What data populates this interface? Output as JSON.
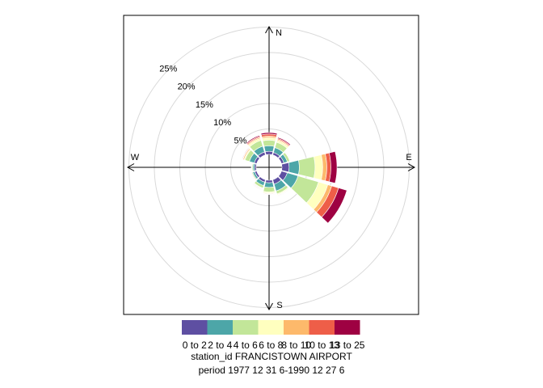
{
  "chart_data": {
    "type": "windrose",
    "title": "",
    "compass": [
      "N",
      "E",
      "S",
      "W"
    ],
    "radial_axis": {
      "max": 25,
      "ticks": [
        5,
        10,
        15,
        20,
        25
      ],
      "tick_labels": [
        "5%",
        "10%",
        "15%",
        "20%",
        "25%"
      ],
      "grid": true
    },
    "speed_bins": [
      "0 to 2",
      "2 to 4",
      "4 to 6",
      "6 to 8",
      "8 to 10",
      "10 to 13",
      "13 to 25"
    ],
    "colors": [
      "#5E4FA2",
      "#4DA6A8",
      "#C2E699",
      "#FFFFBF",
      "#FDB96B",
      "#EE5E48",
      "#9E0142"
    ],
    "directions_deg": [
      0,
      30,
      60,
      90,
      120,
      150,
      180,
      210,
      240,
      270,
      300,
      330
    ],
    "cumulative_percent": [
      [
        0.6,
        1.7,
        2.8,
        3.3,
        3.6,
        4.0,
        4.3
      ],
      [
        0.5,
        1.5,
        2.6,
        3.0,
        3.2,
        3.4,
        3.6
      ],
      [
        0.5,
        1.2,
        1.7,
        1.8,
        1.85,
        1.9,
        1.9
      ],
      [
        1.4,
        3.4,
        6.5,
        8.0,
        8.8,
        9.6,
        10.8
      ],
      [
        1.2,
        3.4,
        7.6,
        9.5,
        10.3,
        11.7,
        13.4
      ],
      [
        0.9,
        2.3,
        2.9,
        3.1,
        3.2,
        3.3,
        3.4
      ],
      [
        0.5,
        1.4,
        2.3,
        2.5,
        2.6,
        2.7,
        2.8
      ],
      [
        0.5,
        1.2,
        1.7,
        1.8,
        1.9,
        2.0,
        2.1
      ],
      [
        0.4,
        0.8,
        1.0,
        1.05,
        1.1,
        1.12,
        1.15
      ],
      [
        0.3,
        0.6,
        0.8,
        0.85,
        0.9,
        0.93,
        0.95
      ],
      [
        0.5,
        1.5,
        2.4,
        2.6,
        2.8,
        2.9,
        3.0
      ],
      [
        0.6,
        1.8,
        3.0,
        3.4,
        3.6,
        3.8,
        4.0
      ]
    ],
    "legend_position": "bottom"
  },
  "caption": {
    "station_line": "station_id FRANCISTOWN AIRPORT",
    "period_line": "period 1977 12 31 6-1990 12 27 6"
  }
}
